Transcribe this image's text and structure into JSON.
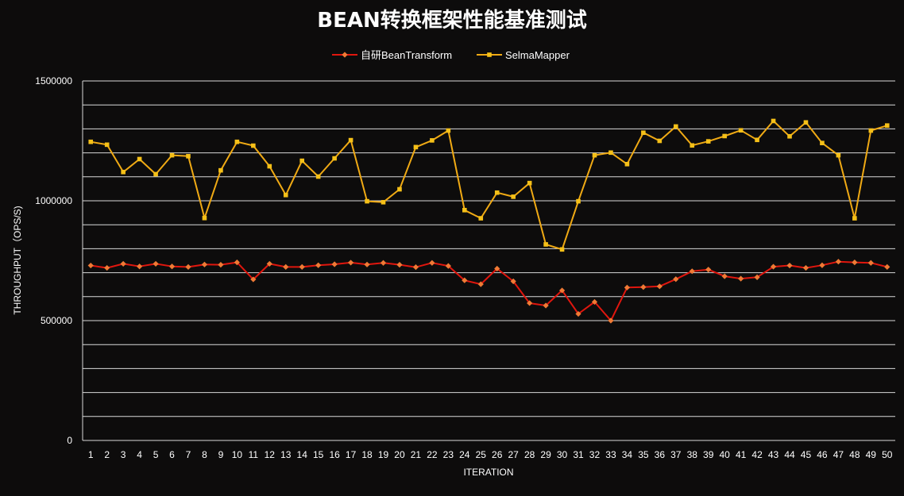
{
  "chart_data": {
    "type": "line",
    "title": "BEAN转换框架性能基准测试",
    "xlabel": "ITERATION",
    "ylabel": "THROUGHPUT（OPS/S)",
    "ylim": [
      0,
      1500000
    ],
    "yticks": [
      0,
      500000,
      1000000,
      1500000
    ],
    "ytick_labels": [
      "0",
      "500000",
      "1000000",
      "1500000"
    ],
    "grid": true,
    "legend_position": "top-center",
    "categories": [
      "1",
      "2",
      "3",
      "4",
      "5",
      "6",
      "7",
      "8",
      "9",
      "10",
      "11",
      "12",
      "13",
      "14",
      "15",
      "16",
      "17",
      "18",
      "19",
      "20",
      "21",
      "22",
      "23",
      "24",
      "25",
      "26",
      "27",
      "28",
      "29",
      "30",
      "31",
      "32",
      "33",
      "34",
      "35",
      "36",
      "37",
      "38",
      "39",
      "40",
      "41",
      "42",
      "43",
      "44",
      "45",
      "46",
      "47",
      "48",
      "49",
      "50"
    ],
    "series": [
      {
        "name": "自研BeanTransform",
        "color": "#e0160e",
        "marker_color": "#f07a35",
        "marker": "diamond",
        "values": [
          730000,
          720000,
          737000,
          726000,
          737000,
          726000,
          724000,
          734000,
          733000,
          743000,
          672000,
          737000,
          724000,
          724000,
          731000,
          735000,
          742000,
          734000,
          741000,
          733000,
          723000,
          741000,
          728000,
          668000,
          652000,
          717000,
          664000,
          573000,
          563000,
          626000,
          528000,
          578000,
          500000,
          638000,
          640000,
          643000,
          673000,
          706000,
          713000,
          685000,
          675000,
          681000,
          725000,
          730000,
          720000,
          731000,
          746000,
          743000,
          741000,
          724000
        ]
      },
      {
        "name": "SelmaMapper",
        "color": "#f0aa14",
        "marker_color": "#f5c018",
        "marker": "square",
        "values": [
          1246000,
          1234000,
          1120000,
          1174000,
          1111000,
          1190000,
          1186000,
          928000,
          1127000,
          1246000,
          1230000,
          1144000,
          1024000,
          1167000,
          1101000,
          1177000,
          1253000,
          998000,
          994000,
          1048000,
          1224000,
          1252000,
          1293000,
          961000,
          927000,
          1034000,
          1017000,
          1074000,
          818000,
          797000,
          998000,
          1190000,
          1201000,
          1153000,
          1284000,
          1250000,
          1310000,
          1231000,
          1248000,
          1270000,
          1294000,
          1254000,
          1333000,
          1269000,
          1327000,
          1241000,
          1190000,
          927000,
          1293000,
          1314000
        ]
      }
    ]
  }
}
